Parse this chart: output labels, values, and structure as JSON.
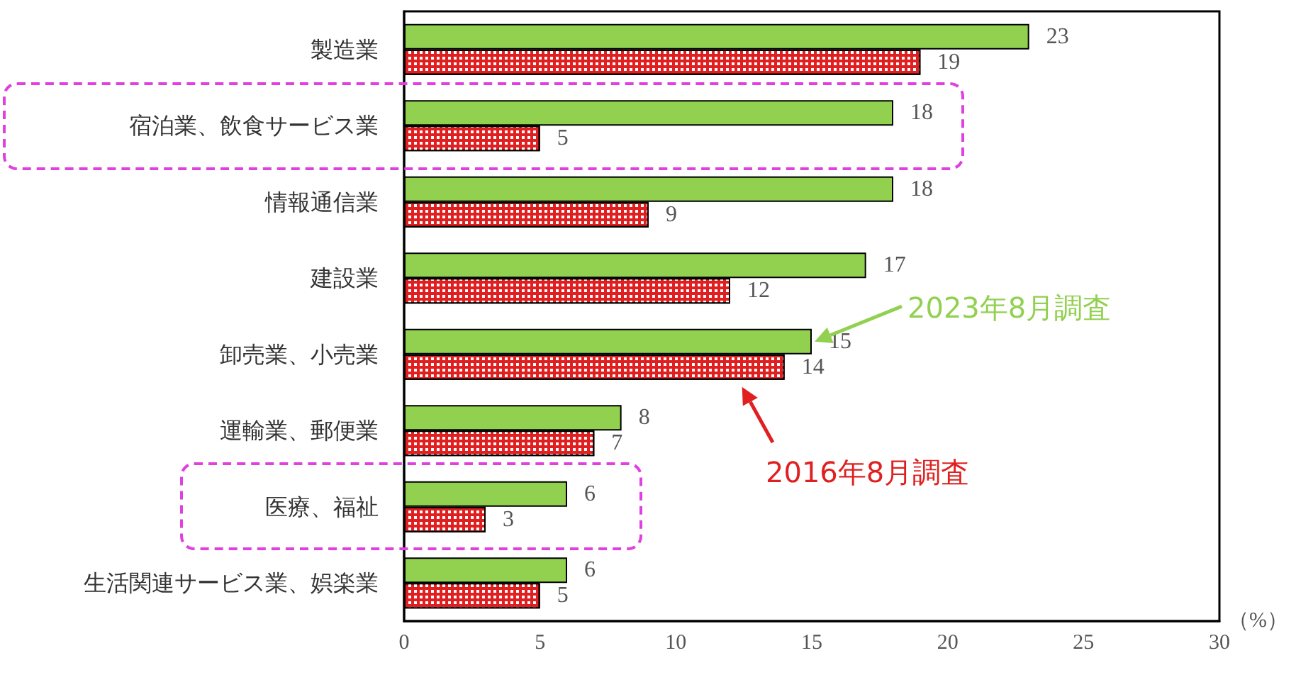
{
  "chart_data": {
    "type": "bar",
    "orientation": "horizontal",
    "categories": [
      "製造業",
      "宿泊業、飲食サービス業",
      "情報通信業",
      "建設業",
      "卸売業、小売業",
      "運輸業、郵便業",
      "医療、福祉",
      "生活関連サービス業、娯楽業"
    ],
    "series": [
      {
        "name": "2023年8月調査",
        "color": "#92d050",
        "values": [
          23,
          18,
          18,
          17,
          15,
          8,
          6,
          6
        ]
      },
      {
        "name": "2016年8月調査",
        "color": "#e02020",
        "values": [
          19,
          5,
          9,
          12,
          14,
          7,
          3,
          5
        ]
      }
    ],
    "xlabel": "（%）",
    "xlim": [
      0,
      30
    ],
    "xticks": [
      0,
      5,
      10,
      15,
      20,
      25,
      30
    ],
    "data_labels": true,
    "grid": false,
    "legend": "right"
  }
}
